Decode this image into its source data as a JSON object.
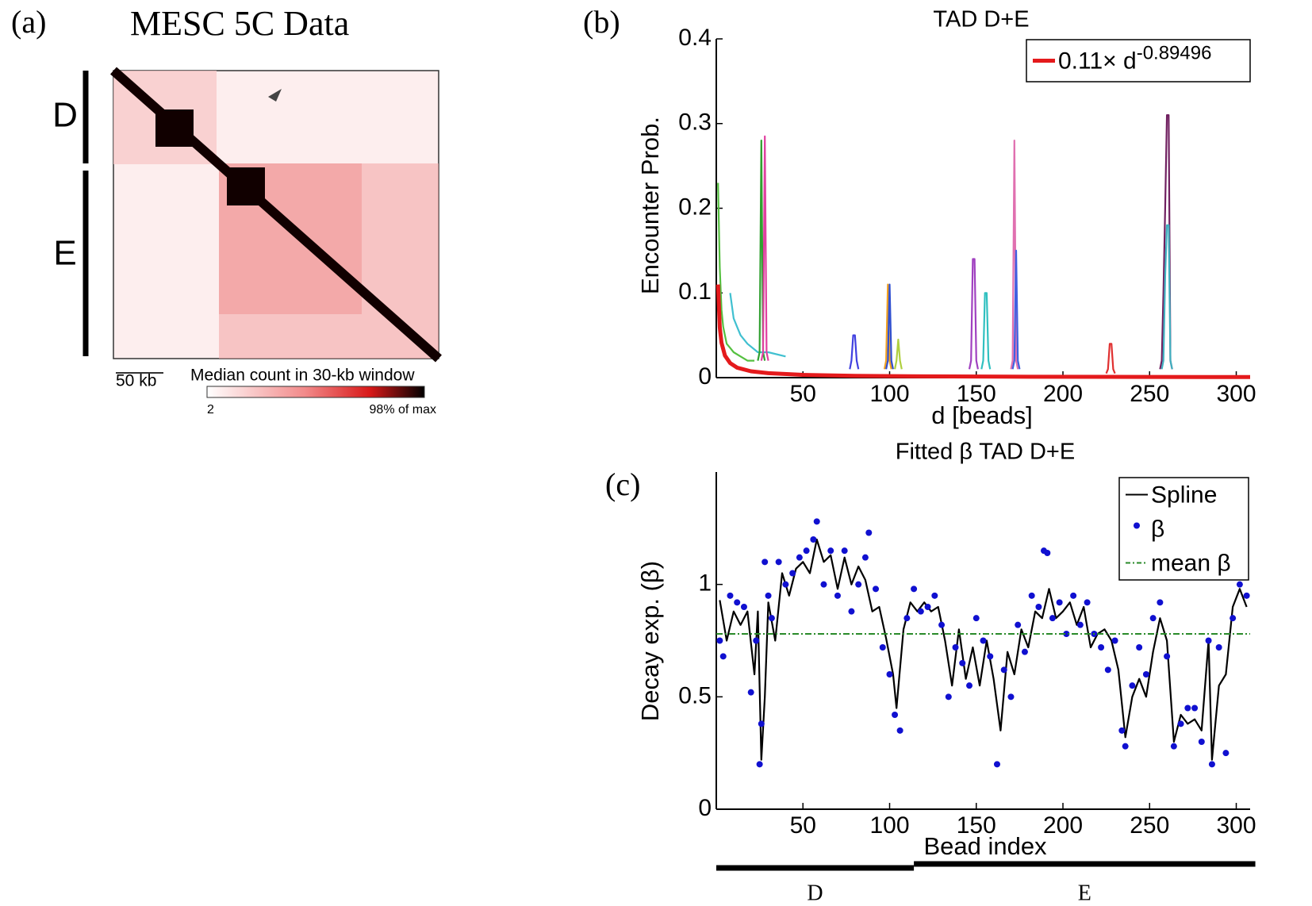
{
  "panel_a": {
    "panel": "(a)",
    "title": "MESC 5C Data",
    "domains": [
      "D",
      "E"
    ],
    "scale_bar": "50 kb",
    "colorbar_label": "Median count in 30-kb window",
    "colorbar_min": "2",
    "colorbar_max": "98% of max"
  },
  "chart_data": [
    {
      "type": "line",
      "panel": "(b)",
      "title": "TAD D+E",
      "xlabel": "d [beads]",
      "ylabel": "Encounter Prob.",
      "xlim": [
        0,
        308
      ],
      "ylim": [
        0,
        0.4
      ],
      "xticks": [
        50,
        100,
        150,
        200,
        250,
        300
      ],
      "yticks": [
        0,
        0.1,
        0.2,
        0.3,
        0.4
      ],
      "legend": "upper right",
      "series": [
        {
          "color": "#55c040",
          "x": [
            1,
            2,
            3,
            4,
            5,
            6,
            8,
            10,
            14,
            18,
            22
          ],
          "values": [
            0.23,
            0.13,
            0.08,
            0.06,
            0.05,
            0.04,
            0.035,
            0.03,
            0.025,
            0.02,
            0.02
          ]
        },
        {
          "color": "#40c0d0",
          "x": [
            8,
            10,
            12,
            14,
            18,
            24,
            30,
            40
          ],
          "values": [
            0.1,
            0.07,
            0.06,
            0.05,
            0.04,
            0.03,
            0.03,
            0.025
          ]
        },
        {
          "color": "#30a030",
          "x": [
            24,
            25,
            26,
            27,
            28
          ],
          "values": [
            0.02,
            0.03,
            0.28,
            0.03,
            0.02
          ]
        },
        {
          "color": "#e040a0",
          "x": [
            26,
            27,
            28,
            29,
            30
          ],
          "values": [
            0.02,
            0.03,
            0.285,
            0.03,
            0.02
          ]
        },
        {
          "color": "#4040e0",
          "x": [
            77,
            78,
            79,
            80,
            81,
            82
          ],
          "values": [
            0.01,
            0.02,
            0.05,
            0.05,
            0.02,
            0.01
          ]
        },
        {
          "color": "#f0a020",
          "x": [
            97,
            98,
            99,
            100,
            101
          ],
          "values": [
            0.01,
            0.02,
            0.11,
            0.02,
            0.01
          ]
        },
        {
          "color": "#3050d0",
          "x": [
            98,
            99,
            100,
            101,
            102
          ],
          "values": [
            0.01,
            0.02,
            0.11,
            0.02,
            0.01
          ]
        },
        {
          "color": "#b0d040",
          "x": [
            103,
            104,
            105,
            106,
            107
          ],
          "values": [
            0.01,
            0.02,
            0.045,
            0.02,
            0.01
          ]
        },
        {
          "color": "#a040c0",
          "x": [
            146,
            147,
            148,
            149,
            150,
            151
          ],
          "values": [
            0.01,
            0.02,
            0.14,
            0.14,
            0.02,
            0.01
          ]
        },
        {
          "color": "#30c0c0",
          "x": [
            153,
            154,
            155,
            156,
            157,
            158
          ],
          "values": [
            0.01,
            0.02,
            0.1,
            0.1,
            0.02,
            0.01
          ]
        },
        {
          "color": "#e070b0",
          "x": [
            170,
            171,
            172,
            173,
            174
          ],
          "values": [
            0.01,
            0.02,
            0.28,
            0.02,
            0.01
          ]
        },
        {
          "color": "#4060e0",
          "x": [
            171,
            172,
            173,
            174,
            175
          ],
          "values": [
            0.01,
            0.02,
            0.15,
            0.02,
            0.01
          ]
        },
        {
          "color": "#e03030",
          "x": [
            225,
            226,
            227,
            228,
            229,
            230
          ],
          "values": [
            0.005,
            0.01,
            0.04,
            0.04,
            0.01,
            0.005
          ]
        },
        {
          "color": "#702060",
          "x": [
            256,
            257,
            258,
            259,
            260,
            261,
            262,
            263
          ],
          "values": [
            0.01,
            0.02,
            0.1,
            0.2,
            0.31,
            0.31,
            0.02,
            0.01
          ]
        },
        {
          "color": "#40b0c0",
          "x": [
            257,
            258,
            259,
            260,
            261,
            262,
            263
          ],
          "values": [
            0.01,
            0.02,
            0.12,
            0.18,
            0.18,
            0.02,
            0.01
          ]
        },
        {
          "name": "0.11× d",
          "name_superscript": "-0.89496",
          "color": "#e41a1c",
          "width": 5,
          "x": [
            1,
            2,
            3,
            5,
            8,
            12,
            20,
            30,
            50,
            80,
            120,
            180,
            250,
            308
          ],
          "values": [
            0.11,
            0.0592,
            0.0411,
            0.026,
            0.0171,
            0.0118,
            0.0075,
            0.0052,
            0.0033,
            0.0021,
            0.0015,
            0.001,
            0.0008,
            0.0007
          ]
        }
      ]
    },
    {
      "type": "scatter",
      "panel": "(c)",
      "title": "Fitted β TAD D+E",
      "xlabel": "Bead index",
      "ylabel": "Decay exp. (β)",
      "xlim": [
        0,
        308
      ],
      "ylim": [
        0,
        1.5
      ],
      "xticks": [
        50,
        100,
        150,
        200,
        250,
        300
      ],
      "yticks": [
        0,
        0.5,
        1
      ],
      "legend": "upper right",
      "series": [
        {
          "name": "Spline",
          "style": "line",
          "color": "#000000",
          "x": [
            2,
            6,
            10,
            14,
            18,
            22,
            24,
            26,
            28,
            30,
            34,
            38,
            42,
            46,
            50,
            54,
            58,
            62,
            66,
            70,
            74,
            78,
            82,
            86,
            90,
            94,
            98,
            102,
            104,
            108,
            112,
            116,
            120,
            124,
            128,
            132,
            136,
            140,
            144,
            148,
            152,
            156,
            160,
            164,
            168,
            172,
            176,
            180,
            184,
            188,
            192,
            196,
            200,
            204,
            208,
            212,
            216,
            220,
            224,
            228,
            232,
            236,
            240,
            244,
            248,
            252,
            256,
            260,
            264,
            268,
            272,
            276,
            280,
            284,
            286,
            290,
            294,
            298,
            302,
            306
          ],
          "values": [
            0.93,
            0.75,
            0.88,
            0.82,
            0.88,
            0.6,
            0.88,
            0.22,
            0.5,
            0.92,
            0.75,
            1.05,
            0.95,
            1.07,
            1.1,
            1.05,
            1.2,
            1.1,
            1.13,
            0.98,
            1.12,
            1.0,
            1.08,
            1.02,
            0.88,
            0.9,
            0.76,
            0.6,
            0.45,
            0.8,
            0.92,
            0.88,
            0.92,
            0.88,
            0.9,
            0.75,
            0.55,
            0.8,
            0.58,
            0.72,
            0.55,
            0.75,
            0.58,
            0.35,
            0.7,
            0.6,
            0.8,
            0.72,
            0.88,
            0.85,
            0.98,
            0.85,
            0.88,
            0.92,
            0.82,
            0.9,
            0.72,
            0.78,
            0.8,
            0.75,
            0.62,
            0.32,
            0.5,
            0.58,
            0.5,
            0.7,
            0.85,
            0.75,
            0.3,
            0.42,
            0.38,
            0.4,
            0.35,
            0.75,
            0.22,
            0.55,
            0.6,
            0.9,
            0.98,
            0.9
          ]
        },
        {
          "name": "β",
          "style": "markers",
          "color": "#1010d0",
          "x": [
            2,
            4,
            8,
            12,
            16,
            20,
            23,
            25,
            26,
            28,
            30,
            32,
            36,
            40,
            44,
            48,
            52,
            56,
            58,
            62,
            66,
            70,
            74,
            78,
            82,
            86,
            88,
            92,
            96,
            100,
            103,
            106,
            110,
            114,
            118,
            122,
            126,
            130,
            134,
            138,
            142,
            146,
            150,
            154,
            158,
            162,
            166,
            170,
            174,
            178,
            182,
            186,
            189,
            191,
            194,
            198,
            202,
            206,
            210,
            214,
            218,
            222,
            226,
            230,
            234,
            236,
            240,
            244,
            248,
            252,
            256,
            260,
            264,
            268,
            272,
            276,
            280,
            284,
            286,
            290,
            294,
            298,
            302,
            306
          ],
          "values": [
            0.75,
            0.68,
            0.95,
            0.92,
            0.9,
            0.52,
            0.75,
            0.2,
            0.38,
            1.1,
            0.95,
            0.85,
            1.1,
            1.0,
            1.05,
            1.12,
            1.15,
            1.2,
            1.28,
            1.0,
            1.15,
            0.95,
            1.15,
            0.88,
            1.0,
            1.12,
            1.23,
            0.98,
            0.72,
            0.6,
            0.42,
            0.35,
            0.85,
            0.98,
            0.88,
            0.9,
            0.95,
            0.82,
            0.5,
            0.72,
            0.65,
            0.55,
            0.85,
            0.75,
            0.68,
            0.2,
            0.62,
            0.5,
            0.82,
            0.7,
            0.95,
            0.9,
            1.15,
            1.14,
            0.85,
            0.92,
            0.78,
            0.95,
            0.82,
            0.92,
            0.78,
            0.72,
            0.62,
            0.75,
            0.35,
            0.28,
            0.55,
            0.72,
            0.6,
            0.85,
            0.92,
            0.68,
            0.28,
            0.38,
            0.45,
            0.45,
            0.3,
            0.75,
            0.2,
            0.72,
            0.25,
            0.85,
            1.0,
            0.95
          ]
        },
        {
          "name": "mean β",
          "style": "dashdot",
          "color": "#2a8a2a",
          "values": [
            0.78
          ]
        }
      ],
      "tracks": [
        {
          "label": "D",
          "start": 0,
          "end": 114
        },
        {
          "label": "E",
          "start": 114,
          "end": 311
        }
      ]
    }
  ]
}
